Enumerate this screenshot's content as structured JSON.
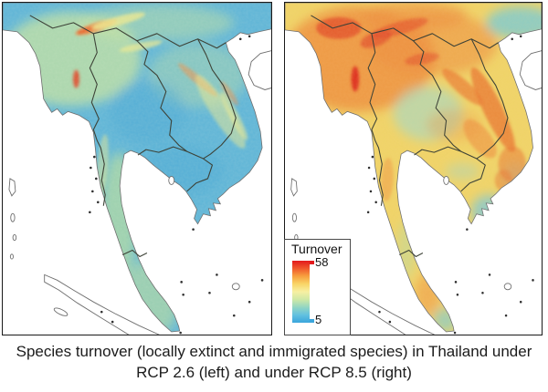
{
  "legend": {
    "title": "Turnover",
    "max": "58",
    "min": "5",
    "colormap_top_to_bottom": [
      "#e31a1c",
      "#f0592c",
      "#f7a03f",
      "#f9d567",
      "#f7f0a2",
      "#cfe8a6",
      "#93d6c3",
      "#62c1e0",
      "#3aa5dc"
    ]
  },
  "caption": {
    "line1": "Species turnover (locally extinct and immigrated species) in Thailand under",
    "line2": "RCP 2.6 (left) and under RCP 8.5 (right)"
  },
  "panels": [
    {
      "scenario": "RCP 2.6",
      "position": "left",
      "palette": {
        "base": "#5fb5d7",
        "green": "#cde59c",
        "green2": "#bfe09a",
        "paleyellow": "#ece98f",
        "teal": "#4aa9d5",
        "orange": "#f09048",
        "deeporange": "#e8662e",
        "red": "#e04828",
        "speckle": "#f2efc0",
        "coast": "#6e6e6e",
        "border": "#3d4237"
      }
    },
    {
      "scenario": "RCP 8.5",
      "position": "right",
      "palette": {
        "base": "#f0d468",
        "orange": "#ef9040",
        "orange2": "#ea7a33",
        "red": "#e1492a",
        "red2": "#dd2b20",
        "cyan": "#7ec9d8",
        "cyan2": "#85cccb",
        "cyangreen": "#a9d8c0",
        "green": "#b8dca8",
        "speckle": "#e6a24a",
        "coast": "#6e6e6e",
        "border": "#3d4237"
      }
    }
  ],
  "chart_data": {
    "type": "heatmap",
    "title": "Species turnover maps of Thailand and mainland Southeast Asia",
    "legend": {
      "title": "Turnover",
      "min": 5,
      "max": 58
    },
    "panels": [
      {
        "scenario": "RCP 2.6",
        "summary": "predominantly low turnover (blue/green ~5-20); scattered high-turnover orange ridges in northwest mountains"
      },
      {
        "scenario": "RCP 8.5",
        "summary": "predominantly high turnover (yellow/orange/red ~30-58); highest in northern Myanmar/Thailand mountains and Laos-Vietnam ranges; lower (blue/green) in central plains, Mekong delta and peninsula tip"
      }
    ]
  }
}
